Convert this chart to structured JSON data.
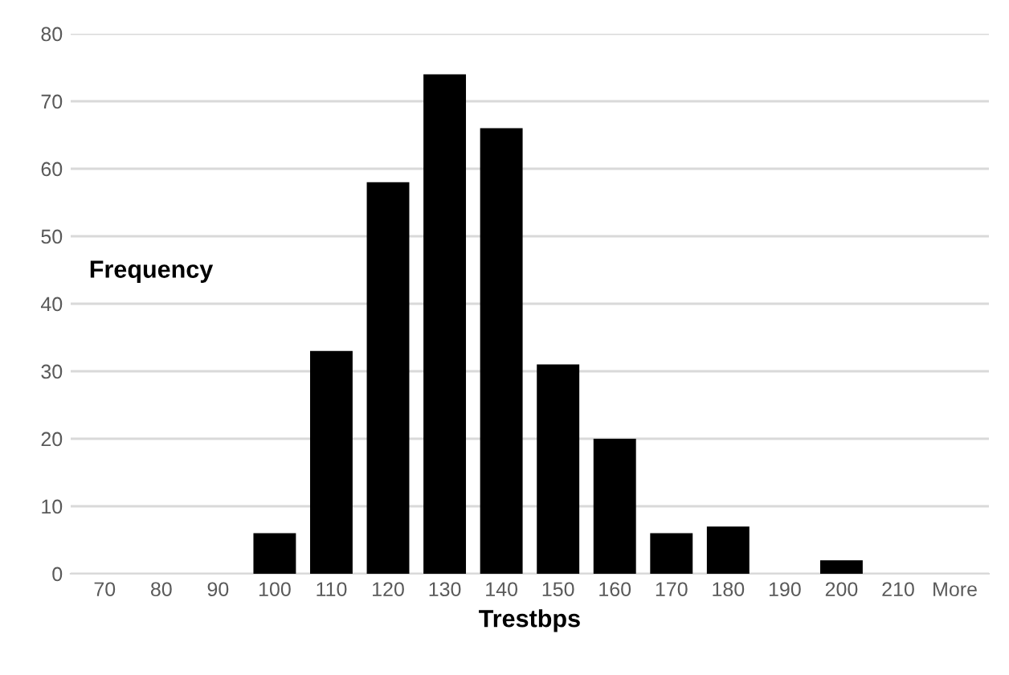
{
  "chart_data": {
    "type": "bar",
    "xlabel": "Trestbps",
    "ylabel": "Frequency",
    "categories": [
      "70",
      "80",
      "90",
      "100",
      "110",
      "120",
      "130",
      "140",
      "150",
      "160",
      "170",
      "180",
      "190",
      "200",
      "210",
      "More"
    ],
    "values": [
      0,
      0,
      0,
      6,
      33,
      58,
      74,
      66,
      31,
      20,
      6,
      7,
      0,
      2,
      0,
      0
    ],
    "color": "#000000",
    "ylim": [
      0,
      80
    ],
    "yticks": [
      0,
      10,
      20,
      30,
      40,
      50,
      60,
      70,
      80
    ],
    "grid": "y"
  }
}
